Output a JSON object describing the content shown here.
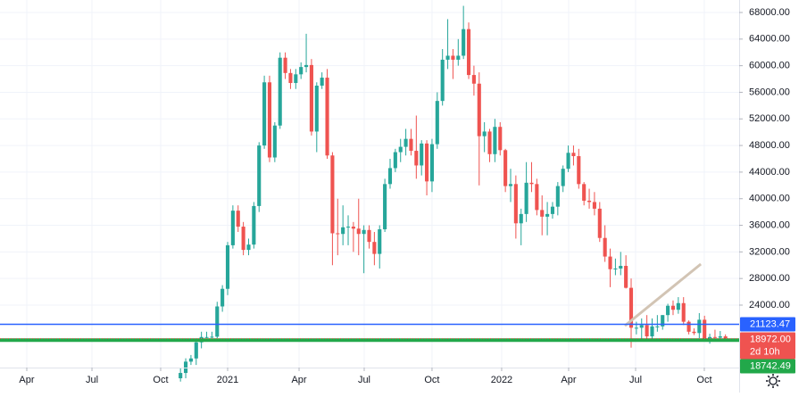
{
  "chart_data": {
    "type": "candlestick",
    "x": [
      -9,
      -8,
      -7,
      -6,
      -5,
      -4,
      -3,
      -2,
      -1,
      0,
      1,
      2,
      3,
      4,
      5,
      6,
      7,
      8,
      9,
      10,
      11,
      12,
      13,
      14,
      15,
      16,
      17,
      18,
      19,
      20,
      21,
      22,
      23,
      24,
      25,
      26,
      27,
      28,
      29,
      30,
      31,
      32,
      33,
      34,
      35,
      36,
      37,
      38,
      39,
      40,
      41,
      42,
      43,
      44,
      45,
      46,
      47,
      48,
      49,
      50,
      51,
      52,
      53,
      54,
      55,
      56,
      57,
      58,
      59,
      60,
      61,
      62,
      63,
      64,
      65,
      66,
      67,
      68,
      69,
      70,
      71,
      72,
      73,
      74,
      75,
      76,
      77,
      78,
      79,
      80,
      81,
      82,
      83,
      84,
      85,
      86,
      87,
      88,
      89,
      90,
      91,
      92,
      93,
      94,
      95
    ],
    "open": [
      13000,
      13800,
      15500,
      15980,
      18400,
      19200,
      19200,
      19250,
      23800,
      26450,
      33000,
      38200,
      35800,
      32300,
      33100,
      38900,
      48000,
      57500,
      46200,
      51000,
      61200,
      58900,
      57400,
      58700,
      59800,
      60100,
      50100,
      57000,
      58200,
      46500,
      34800,
      34700,
      35700,
      35800,
      35500,
      34700,
      35300,
      33500,
      31700,
      35400,
      42200,
      44600,
      47000,
      47800,
      49000,
      47200,
      45000,
      48300,
      42600,
      48200,
      54700,
      60900,
      61500,
      60900,
      61500,
      65500,
      58600,
      57300,
      49400,
      50100,
      46700,
      50800,
      47300,
      41900,
      42200,
      36300,
      37700,
      42400,
      42200,
      38300,
      37300,
      37700,
      38800,
      41900,
      44500,
      46900,
      46400,
      42200,
      39700,
      39500,
      38500,
      34100,
      31300,
      29400,
      29500,
      29900,
      26600,
      20600,
      20600,
      21000,
      19300,
      20800,
      20800,
      22500,
      23900,
      23300,
      24300,
      21500,
      20000,
      19800,
      21800,
      18800,
      19200,
      19100,
      19300
    ],
    "high": [
      14500,
      16000,
      16500,
      19000,
      20000,
      20000,
      20000,
      24500,
      27000,
      33500,
      39000,
      39000,
      36500,
      34000,
      39500,
      48500,
      58500,
      58500,
      51500,
      62000,
      62000,
      59500,
      59500,
      60500,
      64800,
      61000,
      57500,
      59000,
      59500,
      47000,
      40000,
      39000,
      37500,
      36500,
      40000,
      36000,
      36000,
      35000,
      36000,
      43000,
      46000,
      47500,
      49000,
      50500,
      50500,
      52500,
      48800,
      48800,
      49000,
      56000,
      62500,
      67000,
      62500,
      64000,
      69000,
      66500,
      60000,
      59000,
      51500,
      50500,
      52000,
      51500,
      47500,
      44500,
      43500,
      38500,
      45500,
      45500,
      43000,
      40500,
      39500,
      39500,
      42500,
      45000,
      48000,
      48000,
      47500,
      42500,
      41500,
      41000,
      39500,
      36000,
      32500,
      31000,
      32000,
      31500,
      28000,
      21500,
      22000,
      22500,
      22000,
      22500,
      22500,
      24200,
      24700,
      25200,
      25200,
      21700,
      20500,
      22800,
      22400,
      19700,
      20300,
      20100,
      19600
    ],
    "low": [
      12500,
      13000,
      15000,
      15000,
      17500,
      18500,
      18500,
      18500,
      23000,
      25500,
      32500,
      35000,
      31500,
      31500,
      32500,
      38000,
      47500,
      45500,
      45500,
      50500,
      58000,
      56500,
      56500,
      58000,
      59000,
      49500,
      47000,
      56500,
      46000,
      30000,
      31500,
      33000,
      33000,
      32000,
      31500,
      28800,
      32500,
      30000,
      29500,
      35000,
      41500,
      44000,
      45500,
      46500,
      46500,
      43000,
      43500,
      40500,
      41000,
      47500,
      54000,
      59500,
      58000,
      60000,
      61000,
      58000,
      55500,
      42000,
      47000,
      45500,
      45500,
      46500,
      41000,
      39500,
      34000,
      33000,
      36500,
      41000,
      37500,
      34500,
      34500,
      37000,
      37500,
      41000,
      44000,
      45000,
      41500,
      39000,
      38500,
      37500,
      33500,
      30500,
      26700,
      28500,
      28500,
      26500,
      17600,
      19600,
      18800,
      18800,
      18800,
      20000,
      20300,
      21500,
      22500,
      22700,
      21000,
      19600,
      19500,
      18500,
      18500,
      18200,
      18600,
      18900,
      18800
    ],
    "close": [
      13800,
      15500,
      15980,
      18400,
      19200,
      19200,
      19250,
      23800,
      26450,
      33000,
      38200,
      35800,
      32300,
      33100,
      38900,
      48000,
      57500,
      46200,
      51000,
      61200,
      58900,
      57400,
      58700,
      59800,
      60100,
      50100,
      57000,
      58200,
      46500,
      34800,
      34700,
      35700,
      35800,
      35500,
      34700,
      35300,
      33500,
      31700,
      35400,
      42200,
      44600,
      47000,
      47800,
      49000,
      47200,
      45000,
      48300,
      42600,
      48200,
      54700,
      60900,
      61500,
      60900,
      61500,
      65500,
      58600,
      57300,
      49400,
      50100,
      46700,
      50800,
      47300,
      41900,
      42200,
      36300,
      37700,
      42400,
      42200,
      38300,
      37300,
      37700,
      38800,
      41900,
      44500,
      46900,
      46400,
      42200,
      39700,
      39500,
      38500,
      34100,
      31300,
      29400,
      29500,
      29900,
      26600,
      20600,
      20600,
      21000,
      19300,
      20800,
      20800,
      22500,
      23900,
      23300,
      24300,
      21500,
      20000,
      19800,
      21800,
      18800,
      19200,
      19100,
      19300,
      18972
    ],
    "up_color": "#26a69a",
    "down_color": "#ef5350",
    "xlim": [
      -43.44,
      97.61
    ],
    "xticks": [
      {
        "value": -38.33,
        "label": "Apr"
      },
      {
        "value": -25.89,
        "label": "Jul"
      },
      {
        "value": -12.78,
        "label": "Oct"
      },
      {
        "value": 0,
        "label": "2021"
      },
      {
        "value": 13.63,
        "label": "Apr"
      },
      {
        "value": 26.06,
        "label": "Jul"
      },
      {
        "value": 39.0,
        "label": "Oct"
      },
      {
        "value": 52.29,
        "label": "2022"
      },
      {
        "value": 65.07,
        "label": "Apr"
      },
      {
        "value": 77.85,
        "label": "Jul"
      },
      {
        "value": 90.96,
        "label": "Oct"
      }
    ],
    "ylim": [
      14610,
      69878
    ],
    "yticks": [
      {
        "value": 24000,
        "label": "24000.00"
      },
      {
        "value": 28000,
        "label": "28000.00"
      },
      {
        "value": 32000,
        "label": "32000.00"
      },
      {
        "value": 36000,
        "label": "36000.00"
      },
      {
        "value": 40000,
        "label": "40000.00"
      },
      {
        "value": 44000,
        "label": "44000.00"
      },
      {
        "value": 48000,
        "label": "48000.00"
      },
      {
        "value": 52000,
        "label": "52000.00"
      },
      {
        "value": 56000,
        "label": "56000.00"
      },
      {
        "value": 60000,
        "label": "60000.00"
      },
      {
        "value": 64000,
        "label": "64000.00"
      },
      {
        "value": 68000,
        "label": "68000.00"
      }
    ],
    "grid": true,
    "price_lines": [
      {
        "value": 21123.47,
        "label": "21123.47",
        "color": "#2962ff"
      },
      {
        "value": 18742.49,
        "label": "18742.49",
        "color": "#22a84a"
      }
    ],
    "last_price": {
      "value": 18972,
      "label": "18972.00",
      "countdown": "2d 10h",
      "color": "#ef5350"
    },
    "trend_line": {
      "x": [
        75.8,
        90.3
      ],
      "y": [
        20900,
        30170
      ],
      "color": "#d2c4b4"
    }
  }
}
